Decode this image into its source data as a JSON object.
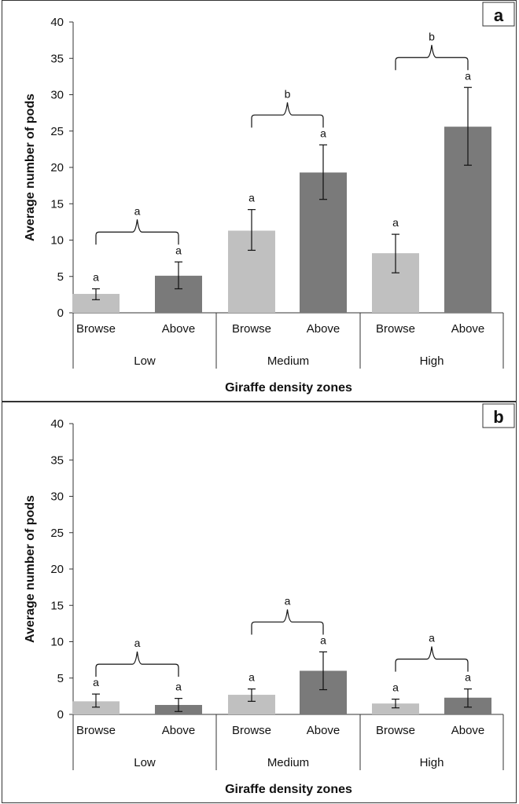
{
  "colors": {
    "browse": "#c0c0c0",
    "above": "#7a7a7a",
    "axis": "#333333"
  },
  "chart_data": [
    {
      "type": "bar",
      "panel": "a",
      "xlabel": "Giraffe density zones",
      "ylabel": "Average number of pods",
      "ylim": [
        0,
        40
      ],
      "yticks": [
        0,
        5,
        10,
        15,
        20,
        25,
        30,
        35,
        40
      ],
      "grid": false,
      "groups": [
        {
          "name": "Low",
          "bracket_label": "a",
          "bars": [
            {
              "category": "Browse",
              "value": 2.6,
              "err_low": 1.8,
              "err_high": 3.3,
              "label": "a"
            },
            {
              "category": "Above",
              "value": 5.1,
              "err_low": 3.3,
              "err_high": 7.0,
              "label": "a"
            }
          ]
        },
        {
          "name": "Medium",
          "bracket_label": "b",
          "bars": [
            {
              "category": "Browse",
              "value": 11.3,
              "err_low": 8.6,
              "err_high": 14.2,
              "label": "a"
            },
            {
              "category": "Above",
              "value": 19.3,
              "err_low": 15.6,
              "err_high": 23.1,
              "label": "a"
            }
          ]
        },
        {
          "name": "High",
          "bracket_label": "b",
          "bars": [
            {
              "category": "Browse",
              "value": 8.2,
              "err_low": 5.5,
              "err_high": 10.8,
              "label": "a"
            },
            {
              "category": "Above",
              "value": 25.6,
              "err_low": 20.3,
              "err_high": 31.0,
              "label": "a"
            }
          ]
        }
      ]
    },
    {
      "type": "bar",
      "panel": "b",
      "xlabel": "Giraffe density zones",
      "ylabel": "Average number of pods",
      "ylim": [
        0,
        40
      ],
      "yticks": [
        0,
        5,
        10,
        15,
        20,
        25,
        30,
        35,
        40
      ],
      "grid": false,
      "groups": [
        {
          "name": "Low",
          "bracket_label": "a",
          "bars": [
            {
              "category": "Browse",
              "value": 1.8,
              "err_low": 1.0,
              "err_high": 2.8,
              "label": "a"
            },
            {
              "category": "Above",
              "value": 1.3,
              "err_low": 0.4,
              "err_high": 2.2,
              "label": "a"
            }
          ]
        },
        {
          "name": "Medium",
          "bracket_label": "a",
          "bars": [
            {
              "category": "Browse",
              "value": 2.7,
              "err_low": 1.8,
              "err_high": 3.5,
              "label": "a"
            },
            {
              "category": "Above",
              "value": 6.0,
              "err_low": 3.4,
              "err_high": 8.6,
              "label": "a"
            }
          ]
        },
        {
          "name": "High",
          "bracket_label": "a",
          "bars": [
            {
              "category": "Browse",
              "value": 1.5,
              "err_low": 0.9,
              "err_high": 2.1,
              "label": "a"
            },
            {
              "category": "Above",
              "value": 2.3,
              "err_low": 1.0,
              "err_high": 3.5,
              "label": "a"
            }
          ]
        }
      ]
    }
  ]
}
